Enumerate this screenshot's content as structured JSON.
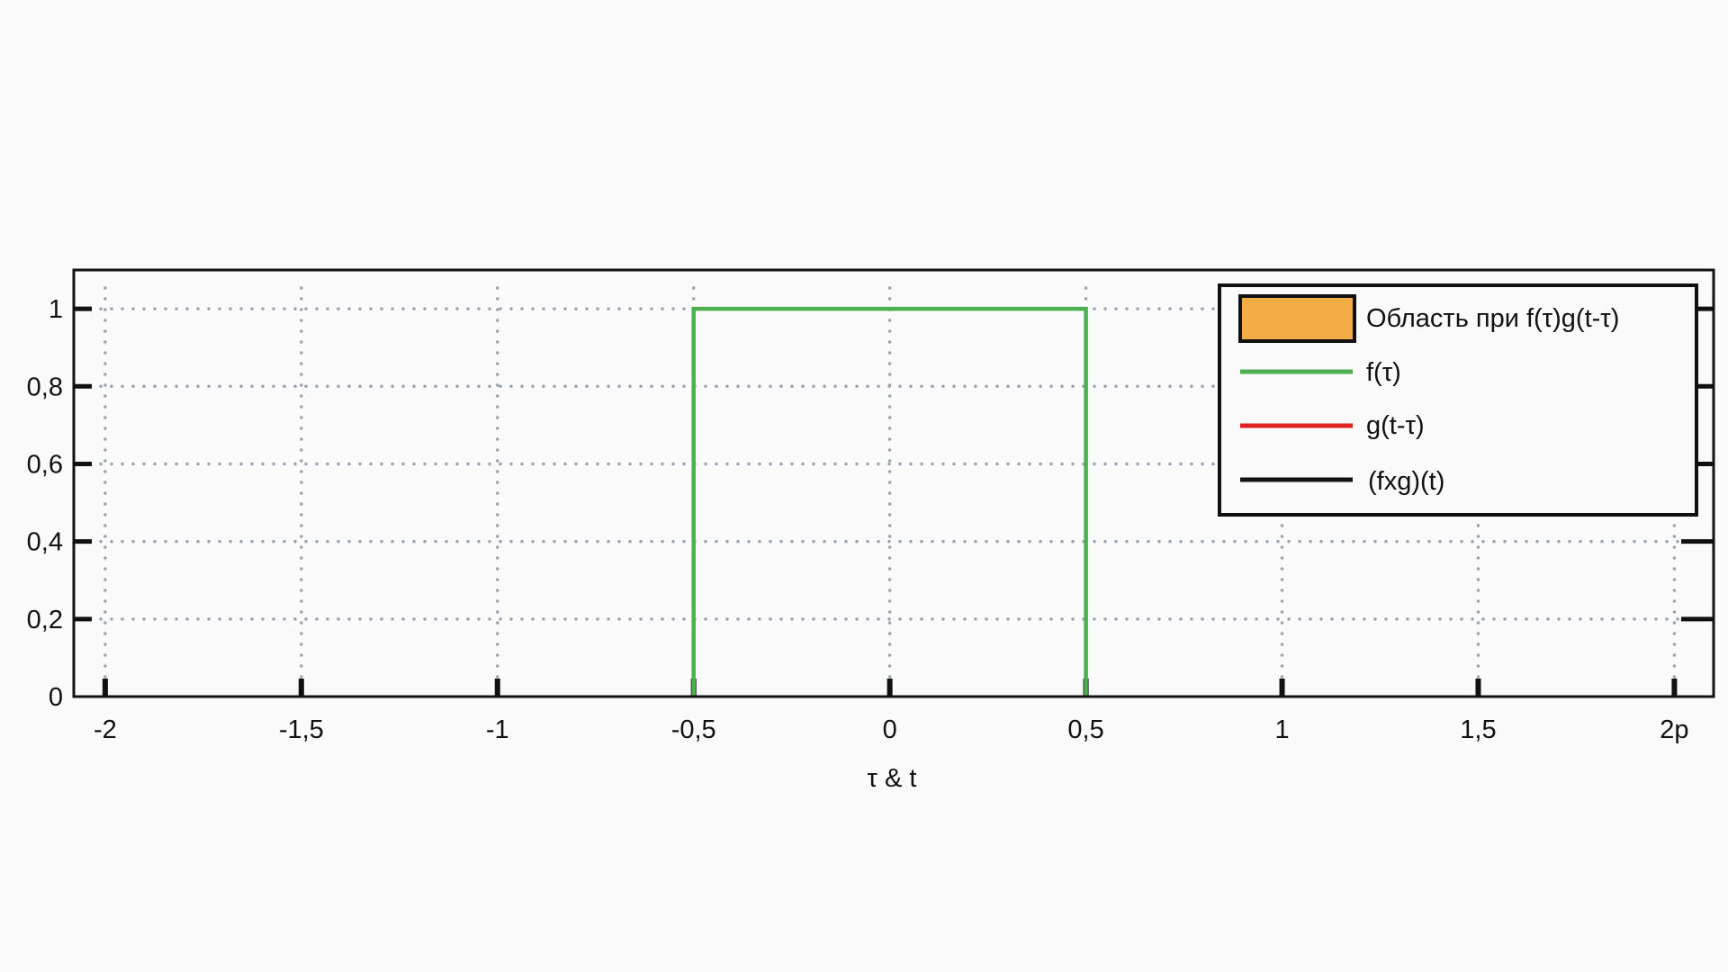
{
  "chart_data": {
    "type": "line",
    "title": "",
    "xlabel": "τ & t",
    "ylabel": "",
    "xlim": [
      -2.08,
      2.1
    ],
    "ylim": [
      0,
      1.1
    ],
    "grid": true,
    "legend_position": "top-right",
    "x_ticks": [
      -2,
      -1.5,
      -1,
      -0.5,
      0,
      0.5,
      1,
      1.5,
      2
    ],
    "x_tick_labels": [
      "-2",
      "-1,5",
      "-1",
      "-0,5",
      "0",
      "0,5",
      "1",
      "1,5",
      "2p"
    ],
    "y_ticks": [
      0,
      0.2,
      0.4,
      0.6,
      0.8,
      1
    ],
    "y_tick_labels": [
      "0",
      "0,2",
      "0,4",
      "0,6",
      "0,8",
      "1"
    ],
    "legend": [
      {
        "label": "Область при f(τ)g(t-τ)",
        "kind": "area",
        "color": "#f4ac45"
      },
      {
        "label": "f(τ)",
        "kind": "line",
        "color": "#4caf50"
      },
      {
        "label": "g(t-τ)",
        "kind": "line",
        "color": "#e02020"
      },
      {
        "label": "(fxg)(t)",
        "kind": "line",
        "color": "#111111"
      }
    ],
    "series": [
      {
        "name": "f(τ)",
        "color": "#4caf50",
        "x": [
          -0.5,
          -0.5,
          0.5,
          0.5
        ],
        "y": [
          0,
          1,
          1,
          0
        ]
      }
    ]
  }
}
